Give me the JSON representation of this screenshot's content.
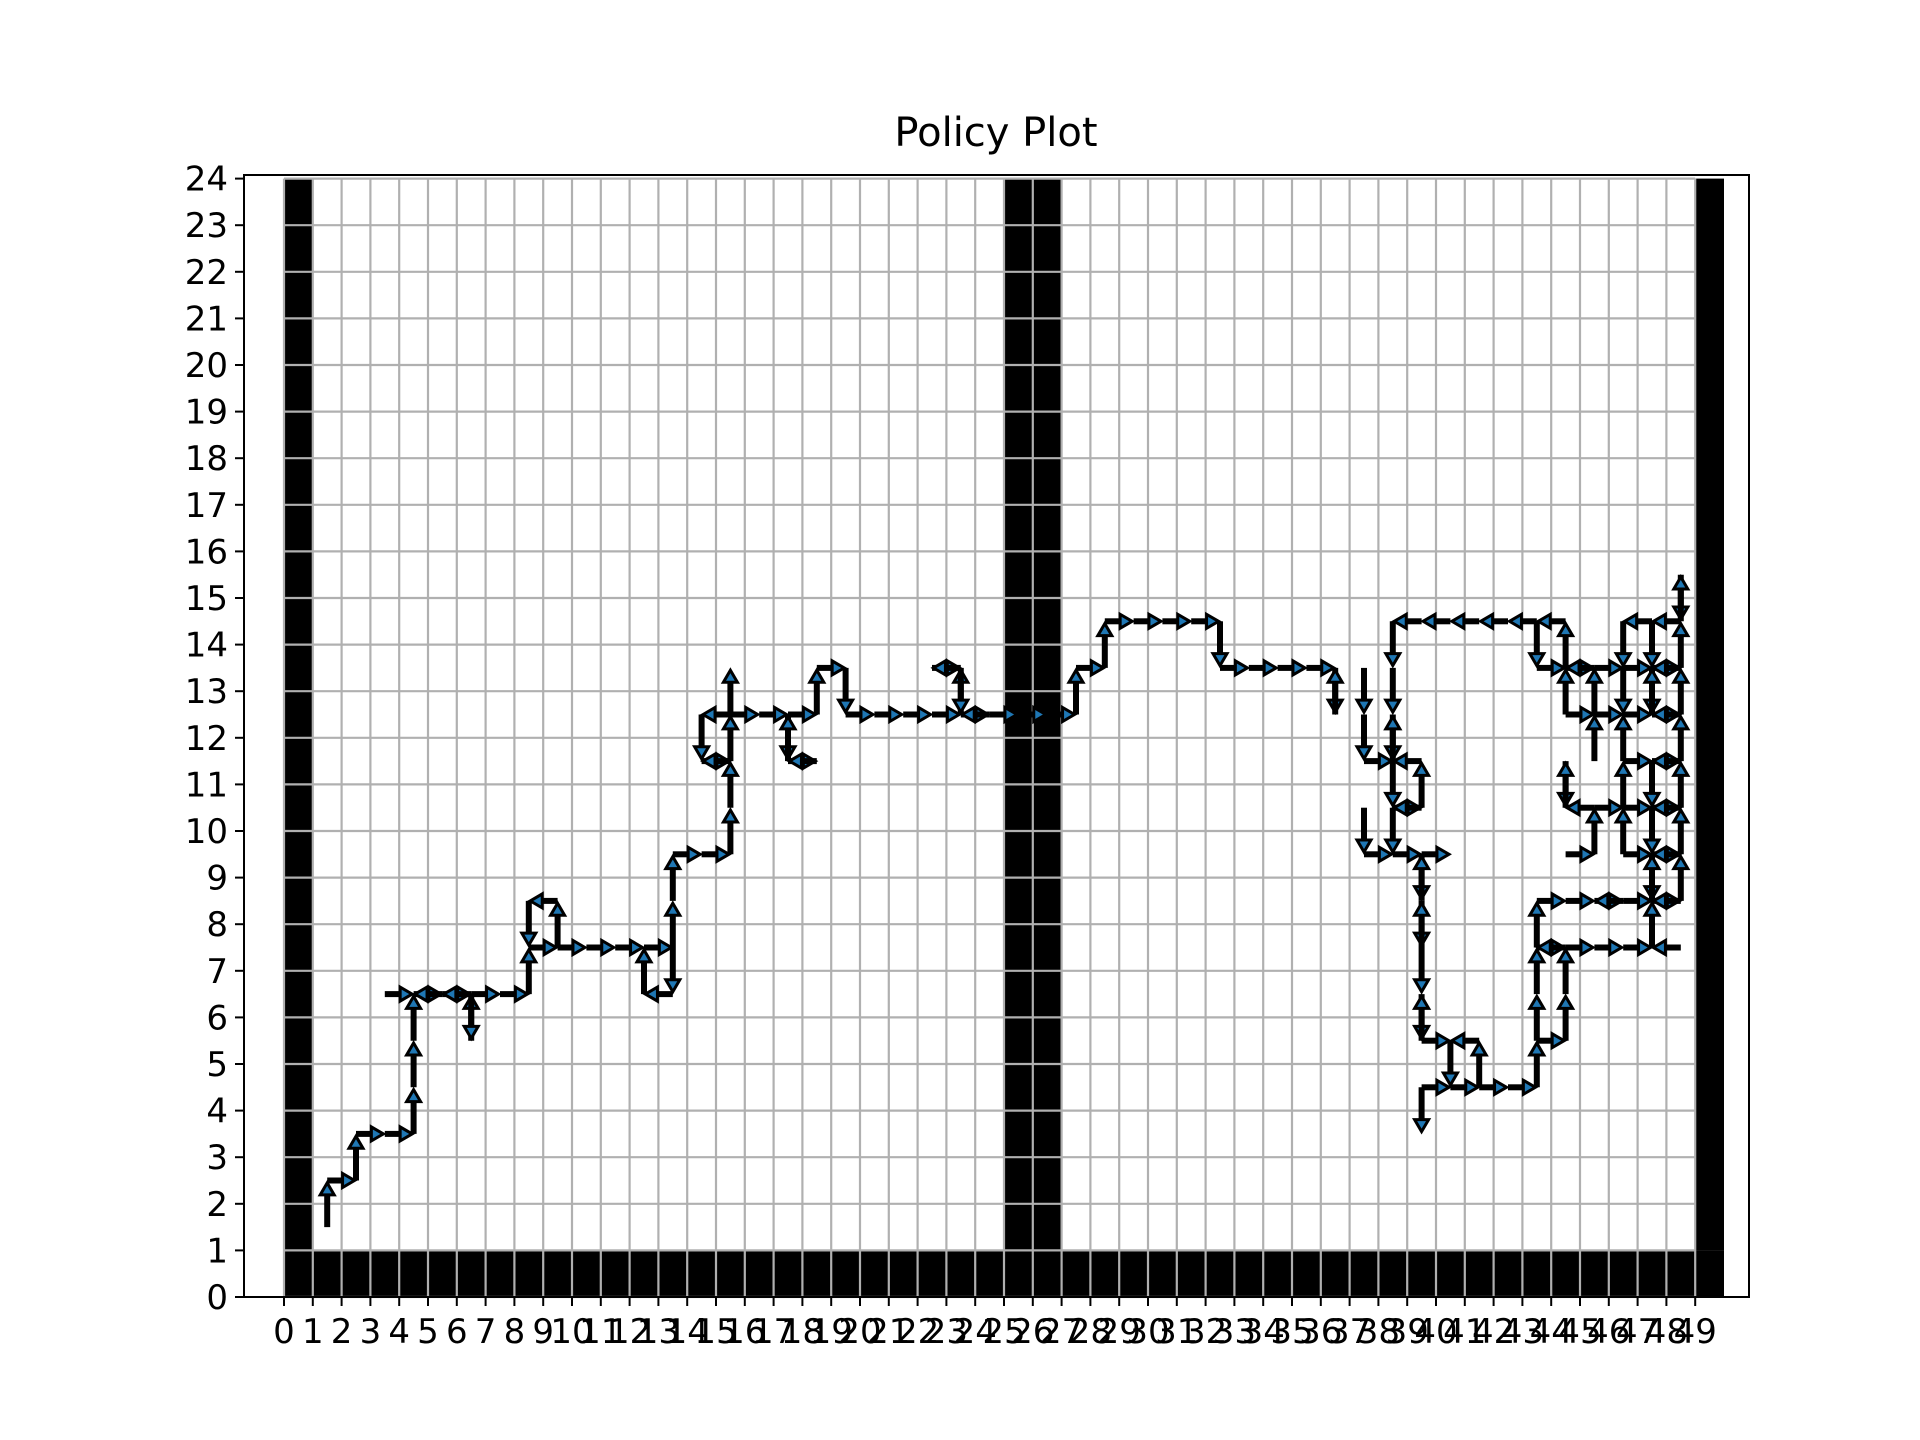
{
  "chart_data": {
    "type": "heatmap",
    "title": "Policy Plot",
    "xlabel": "",
    "ylabel": "",
    "xlim": [
      0,
      50
    ],
    "ylim": [
      0,
      24
    ],
    "x_ticks": [
      0,
      1,
      2,
      3,
      4,
      5,
      6,
      7,
      8,
      9,
      10,
      11,
      12,
      13,
      14,
      15,
      16,
      17,
      18,
      19,
      20,
      21,
      22,
      23,
      24,
      25,
      26,
      27,
      28,
      29,
      30,
      31,
      32,
      33,
      34,
      35,
      36,
      37,
      38,
      39,
      40,
      41,
      42,
      43,
      44,
      45,
      46,
      47,
      48,
      49
    ],
    "y_ticks": [
      0,
      1,
      2,
      3,
      4,
      5,
      6,
      7,
      8,
      9,
      10,
      11,
      12,
      13,
      14,
      15,
      16,
      17,
      18,
      19,
      20,
      21,
      22,
      23,
      24
    ],
    "grid": true,
    "colors": {
      "wall": "#000000",
      "arrow_head": "#1f77b4",
      "arrow_outline": "#000000",
      "grid": "#b0b0b0"
    },
    "walls": {
      "bottom_row_y": 0,
      "bottom_row_x_range": [
        0,
        49
      ],
      "columns": [
        {
          "x": 0,
          "y_range": [
            1,
            23
          ]
        },
        {
          "x": 25,
          "y_range": [
            1,
            23
          ]
        },
        {
          "x": 26,
          "y_range": [
            1,
            23
          ]
        },
        {
          "x": 49,
          "y_range": [
            1,
            23
          ]
        }
      ]
    },
    "policy_arrows": [
      {
        "x": 1,
        "y": 1,
        "dir": "up"
      },
      {
        "x": 1,
        "y": 2,
        "dir": "right"
      },
      {
        "x": 2,
        "y": 2,
        "dir": "up"
      },
      {
        "x": 2,
        "y": 3,
        "dir": "right"
      },
      {
        "x": 3,
        "y": 3,
        "dir": "right"
      },
      {
        "x": 4,
        "y": 3,
        "dir": "up"
      },
      {
        "x": 4,
        "y": 4,
        "dir": "up"
      },
      {
        "x": 4,
        "y": 5,
        "dir": "up"
      },
      {
        "x": 3,
        "y": 6,
        "dir": "right"
      },
      {
        "x": 4,
        "y": 6,
        "dir": "right"
      },
      {
        "x": 5,
        "y": 6,
        "dir": "left"
      },
      {
        "x": 5,
        "y": 6,
        "dir": "right"
      },
      {
        "x": 6,
        "y": 6,
        "dir": "left"
      },
      {
        "x": 6,
        "y": 6,
        "dir": "right"
      },
      {
        "x": 6,
        "y": 5,
        "dir": "up"
      },
      {
        "x": 6,
        "y": 6,
        "dir": "down"
      },
      {
        "x": 7,
        "y": 6,
        "dir": "right"
      },
      {
        "x": 8,
        "y": 6,
        "dir": "up"
      },
      {
        "x": 8,
        "y": 7,
        "dir": "right"
      },
      {
        "x": 8,
        "y": 8,
        "dir": "down"
      },
      {
        "x": 9,
        "y": 8,
        "dir": "left"
      },
      {
        "x": 9,
        "y": 7,
        "dir": "right"
      },
      {
        "x": 9,
        "y": 7,
        "dir": "up"
      },
      {
        "x": 10,
        "y": 7,
        "dir": "right"
      },
      {
        "x": 11,
        "y": 7,
        "dir": "right"
      },
      {
        "x": 12,
        "y": 7,
        "dir": "right"
      },
      {
        "x": 12,
        "y": 6,
        "dir": "up"
      },
      {
        "x": 13,
        "y": 6,
        "dir": "left"
      },
      {
        "x": 13,
        "y": 7,
        "dir": "up"
      },
      {
        "x": 13,
        "y": 7,
        "dir": "down"
      },
      {
        "x": 13,
        "y": 8,
        "dir": "up"
      },
      {
        "x": 13,
        "y": 9,
        "dir": "right"
      },
      {
        "x": 14,
        "y": 9,
        "dir": "right"
      },
      {
        "x": 15,
        "y": 9,
        "dir": "up"
      },
      {
        "x": 15,
        "y": 10,
        "dir": "up"
      },
      {
        "x": 14,
        "y": 11,
        "dir": "right"
      },
      {
        "x": 15,
        "y": 11,
        "dir": "up"
      },
      {
        "x": 15,
        "y": 11,
        "dir": "left"
      },
      {
        "x": 14,
        "y": 12,
        "dir": "down"
      },
      {
        "x": 15,
        "y": 12,
        "dir": "right"
      },
      {
        "x": 15,
        "y": 12,
        "dir": "up"
      },
      {
        "x": 15,
        "y": 12,
        "dir": "left"
      },
      {
        "x": 16,
        "y": 12,
        "dir": "right"
      },
      {
        "x": 17,
        "y": 12,
        "dir": "right"
      },
      {
        "x": 17,
        "y": 12,
        "dir": "down"
      },
      {
        "x": 17,
        "y": 11,
        "dir": "up"
      },
      {
        "x": 17,
        "y": 11,
        "dir": "right"
      },
      {
        "x": 18,
        "y": 11,
        "dir": "left"
      },
      {
        "x": 18,
        "y": 12,
        "dir": "up"
      },
      {
        "x": 18,
        "y": 13,
        "dir": "right"
      },
      {
        "x": 19,
        "y": 13,
        "dir": "down"
      },
      {
        "x": 19,
        "y": 12,
        "dir": "right"
      },
      {
        "x": 20,
        "y": 12,
        "dir": "right"
      },
      {
        "x": 21,
        "y": 12,
        "dir": "right"
      },
      {
        "x": 22,
        "y": 12,
        "dir": "right"
      },
      {
        "x": 23,
        "y": 12,
        "dir": "right"
      },
      {
        "x": 23,
        "y": 12,
        "dir": "up"
      },
      {
        "x": 22,
        "y": 13,
        "dir": "right"
      },
      {
        "x": 23,
        "y": 13,
        "dir": "down"
      },
      {
        "x": 23,
        "y": 13,
        "dir": "left"
      },
      {
        "x": 24,
        "y": 12,
        "dir": "left"
      },
      {
        "x": 24,
        "y": 12,
        "dir": "right"
      },
      {
        "x": 25,
        "y": 12,
        "dir": "right"
      },
      {
        "x": 26,
        "y": 12,
        "dir": "right"
      },
      {
        "x": 27,
        "y": 12,
        "dir": "up"
      },
      {
        "x": 27,
        "y": 13,
        "dir": "right"
      },
      {
        "x": 28,
        "y": 13,
        "dir": "up"
      },
      {
        "x": 28,
        "y": 14,
        "dir": "right"
      },
      {
        "x": 29,
        "y": 14,
        "dir": "right"
      },
      {
        "x": 30,
        "y": 14,
        "dir": "right"
      },
      {
        "x": 31,
        "y": 14,
        "dir": "right"
      },
      {
        "x": 32,
        "y": 14,
        "dir": "down"
      },
      {
        "x": 32,
        "y": 13,
        "dir": "right"
      },
      {
        "x": 33,
        "y": 13,
        "dir": "right"
      },
      {
        "x": 34,
        "y": 13,
        "dir": "right"
      },
      {
        "x": 35,
        "y": 13,
        "dir": "right"
      },
      {
        "x": 36,
        "y": 13,
        "dir": "down"
      },
      {
        "x": 36,
        "y": 12,
        "dir": "up"
      },
      {
        "x": 37,
        "y": 13,
        "dir": "down"
      },
      {
        "x": 37,
        "y": 12,
        "dir": "down"
      },
      {
        "x": 37,
        "y": 11,
        "dir": "right"
      },
      {
        "x": 37,
        "y": 10,
        "dir": "down"
      },
      {
        "x": 37,
        "y": 9,
        "dir": "right"
      },
      {
        "x": 38,
        "y": 14,
        "dir": "down"
      },
      {
        "x": 38,
        "y": 13,
        "dir": "down"
      },
      {
        "x": 38,
        "y": 12,
        "dir": "down"
      },
      {
        "x": 38,
        "y": 11,
        "dir": "up"
      },
      {
        "x": 38,
        "y": 11,
        "dir": "down"
      },
      {
        "x": 39,
        "y": 11,
        "dir": "left"
      },
      {
        "x": 38,
        "y": 10,
        "dir": "right"
      },
      {
        "x": 38,
        "y": 10,
        "dir": "down"
      },
      {
        "x": 39,
        "y": 10,
        "dir": "up"
      },
      {
        "x": 39,
        "y": 10,
        "dir": "left"
      },
      {
        "x": 38,
        "y": 9,
        "dir": "right"
      },
      {
        "x": 39,
        "y": 9,
        "dir": "right"
      },
      {
        "x": 39,
        "y": 9,
        "dir": "down"
      },
      {
        "x": 39,
        "y": 8,
        "dir": "up"
      },
      {
        "x": 39,
        "y": 8,
        "dir": "down"
      },
      {
        "x": 39,
        "y": 7,
        "dir": "up"
      },
      {
        "x": 39,
        "y": 7,
        "dir": "down"
      },
      {
        "x": 39,
        "y": 6,
        "dir": "down"
      },
      {
        "x": 39,
        "y": 5,
        "dir": "right"
      },
      {
        "x": 39,
        "y": 5,
        "dir": "up"
      },
      {
        "x": 40,
        "y": 5,
        "dir": "down"
      },
      {
        "x": 41,
        "y": 5,
        "dir": "left"
      },
      {
        "x": 39,
        "y": 4,
        "dir": "right"
      },
      {
        "x": 39,
        "y": 4,
        "dir": "down"
      },
      {
        "x": 40,
        "y": 4,
        "dir": "right"
      },
      {
        "x": 41,
        "y": 4,
        "dir": "right"
      },
      {
        "x": 41,
        "y": 4,
        "dir": "up"
      },
      {
        "x": 42,
        "y": 4,
        "dir": "right"
      },
      {
        "x": 43,
        "y": 4,
        "dir": "up"
      },
      {
        "x": 43,
        "y": 5,
        "dir": "up"
      },
      {
        "x": 43,
        "y": 5,
        "dir": "right"
      },
      {
        "x": 43,
        "y": 6,
        "dir": "up"
      },
      {
        "x": 44,
        "y": 5,
        "dir": "up"
      },
      {
        "x": 44,
        "y": 6,
        "dir": "up"
      },
      {
        "x": 39,
        "y": 14,
        "dir": "left"
      },
      {
        "x": 40,
        "y": 14,
        "dir": "left"
      },
      {
        "x": 41,
        "y": 14,
        "dir": "left"
      },
      {
        "x": 42,
        "y": 14,
        "dir": "left"
      },
      {
        "x": 43,
        "y": 14,
        "dir": "left"
      },
      {
        "x": 43,
        "y": 14,
        "dir": "down"
      },
      {
        "x": 44,
        "y": 14,
        "dir": "left"
      },
      {
        "x": 43,
        "y": 13,
        "dir": "right"
      },
      {
        "x": 44,
        "y": 13,
        "dir": "right"
      },
      {
        "x": 44,
        "y": 13,
        "dir": "up"
      },
      {
        "x": 45,
        "y": 13,
        "dir": "left"
      },
      {
        "x": 45,
        "y": 13,
        "dir": "right"
      },
      {
        "x": 44,
        "y": 12,
        "dir": "up"
      },
      {
        "x": 44,
        "y": 12,
        "dir": "right"
      },
      {
        "x": 44,
        "y": 11,
        "dir": "down"
      },
      {
        "x": 44,
        "y": 10,
        "dir": "up"
      },
      {
        "x": 45,
        "y": 12,
        "dir": "up"
      },
      {
        "x": 45,
        "y": 12,
        "dir": "right"
      },
      {
        "x": 45,
        "y": 11,
        "dir": "up"
      },
      {
        "x": 45,
        "y": 10,
        "dir": "left"
      },
      {
        "x": 45,
        "y": 10,
        "dir": "right"
      },
      {
        "x": 45,
        "y": 9,
        "dir": "up"
      },
      {
        "x": 44,
        "y": 9,
        "dir": "right"
      },
      {
        "x": 43,
        "y": 8,
        "dir": "right"
      },
      {
        "x": 44,
        "y": 8,
        "dir": "right"
      },
      {
        "x": 45,
        "y": 8,
        "dir": "right"
      },
      {
        "x": 43,
        "y": 7,
        "dir": "right"
      },
      {
        "x": 44,
        "y": 7,
        "dir": "left"
      },
      {
        "x": 44,
        "y": 7,
        "dir": "right"
      },
      {
        "x": 45,
        "y": 7,
        "dir": "right"
      },
      {
        "x": 46,
        "y": 7,
        "dir": "right"
      },
      {
        "x": 47,
        "y": 7,
        "dir": "up"
      },
      {
        "x": 48,
        "y": 7,
        "dir": "left"
      },
      {
        "x": 43,
        "y": 7,
        "dir": "up"
      },
      {
        "x": 46,
        "y": 14,
        "dir": "down"
      },
      {
        "x": 46,
        "y": 13,
        "dir": "right"
      },
      {
        "x": 46,
        "y": 13,
        "dir": "down"
      },
      {
        "x": 46,
        "y": 12,
        "dir": "right"
      },
      {
        "x": 46,
        "y": 11,
        "dir": "up"
      },
      {
        "x": 46,
        "y": 11,
        "dir": "right"
      },
      {
        "x": 46,
        "y": 10,
        "dir": "up"
      },
      {
        "x": 46,
        "y": 10,
        "dir": "right"
      },
      {
        "x": 46,
        "y": 9,
        "dir": "up"
      },
      {
        "x": 46,
        "y": 9,
        "dir": "right"
      },
      {
        "x": 46,
        "y": 8,
        "dir": "left"
      },
      {
        "x": 46,
        "y": 8,
        "dir": "right"
      },
      {
        "x": 47,
        "y": 14,
        "dir": "down"
      },
      {
        "x": 47,
        "y": 14,
        "dir": "left"
      },
      {
        "x": 47,
        "y": 13,
        "dir": "down"
      },
      {
        "x": 47,
        "y": 13,
        "dir": "right"
      },
      {
        "x": 47,
        "y": 12,
        "dir": "up"
      },
      {
        "x": 47,
        "y": 12,
        "dir": "right"
      },
      {
        "x": 47,
        "y": 11,
        "dir": "down"
      },
      {
        "x": 47,
        "y": 11,
        "dir": "right"
      },
      {
        "x": 47,
        "y": 10,
        "dir": "down"
      },
      {
        "x": 47,
        "y": 10,
        "dir": "right"
      },
      {
        "x": 47,
        "y": 9,
        "dir": "down"
      },
      {
        "x": 47,
        "y": 9,
        "dir": "right"
      },
      {
        "x": 47,
        "y": 8,
        "dir": "up"
      },
      {
        "x": 47,
        "y": 8,
        "dir": "right"
      },
      {
        "x": 48,
        "y": 15,
        "dir": "down"
      },
      {
        "x": 48,
        "y": 14,
        "dir": "left"
      },
      {
        "x": 48,
        "y": 14,
        "dir": "up"
      },
      {
        "x": 48,
        "y": 13,
        "dir": "up"
      },
      {
        "x": 48,
        "y": 13,
        "dir": "left"
      },
      {
        "x": 48,
        "y": 12,
        "dir": "up"
      },
      {
        "x": 48,
        "y": 12,
        "dir": "left"
      },
      {
        "x": 48,
        "y": 11,
        "dir": "up"
      },
      {
        "x": 48,
        "y": 11,
        "dir": "left"
      },
      {
        "x": 48,
        "y": 10,
        "dir": "up"
      },
      {
        "x": 48,
        "y": 10,
        "dir": "left"
      },
      {
        "x": 48,
        "y": 9,
        "dir": "up"
      },
      {
        "x": 48,
        "y": 9,
        "dir": "left"
      },
      {
        "x": 48,
        "y": 8,
        "dir": "up"
      },
      {
        "x": 48,
        "y": 8,
        "dir": "left"
      }
    ]
  }
}
